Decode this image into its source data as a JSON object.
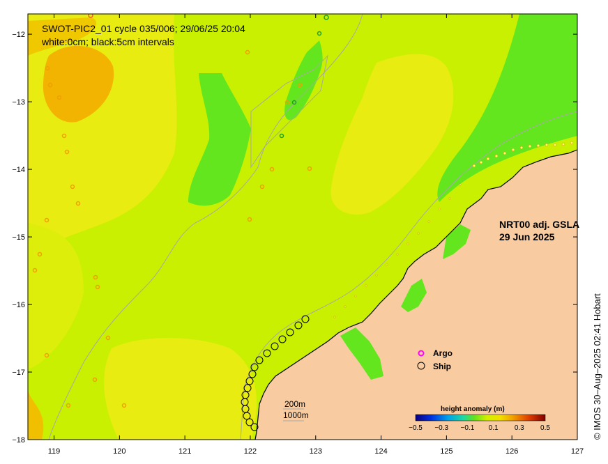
{
  "title": {
    "line1": "SWOT-PIC2_01 cycle 035/006; 29/06/25 20:04",
    "line2": "white:0cm; black:5cm intervals"
  },
  "product": {
    "line1": "NRT00 adj. GSLA",
    "line2": "29 Jun 2025"
  },
  "legend": {
    "argo_label": "Argo",
    "ship_label": "Ship",
    "argo_color": "#ff00ff",
    "ship_color": "#000000"
  },
  "depth_contours": {
    "label_200": "200m",
    "label_1000": "1000m"
  },
  "colorbar": {
    "title": "height anomaly (m)",
    "ticks": [
      "−0.5",
      "−0.3",
      "−0.1",
      "0.1",
      "0.3",
      "0.5"
    ],
    "range": [
      -0.5,
      0.5
    ]
  },
  "credit": "© IMOS 30–Aug–2025 02:41 Hobart",
  "axes": {
    "x_ticks": [
      "119",
      "120",
      "121",
      "122",
      "123",
      "124",
      "125",
      "126",
      "127"
    ],
    "y_ticks": [
      "−12",
      "−13",
      "−14",
      "−15",
      "−16",
      "−17",
      "−18"
    ],
    "lon_range": [
      118.6,
      127.0
    ],
    "lat_range": [
      -18.0,
      -11.7
    ]
  },
  "colors": {
    "land": "#f9cba0",
    "sea_base": "#c8f000",
    "sea_yellow": "#e8ec10",
    "sea_orange": "#f2b400",
    "sea_green": "#64e61e",
    "bathymetry": "#a8a8a8"
  }
}
